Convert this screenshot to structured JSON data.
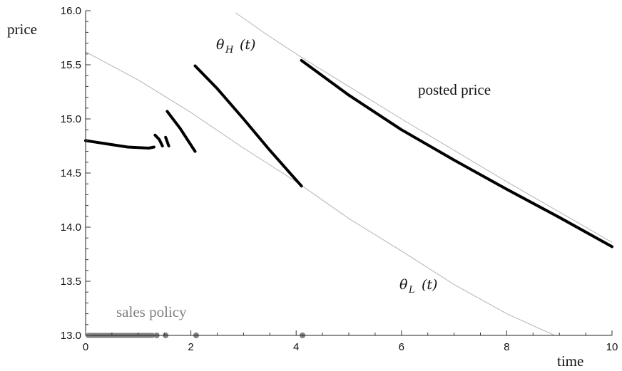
{
  "chart_data": {
    "type": "line",
    "xlabel": "time",
    "ylabel": "price",
    "xlim": [
      0,
      10
    ],
    "ylim": [
      13.0,
      16.0
    ],
    "x_ticks": [
      0,
      2,
      4,
      6,
      8,
      10
    ],
    "x_tick_labels": [
      "0",
      "2",
      "4",
      "6",
      "8",
      "10"
    ],
    "y_ticks": [
      13.0,
      13.5,
      14.0,
      14.5,
      15.0,
      15.5,
      16.0
    ],
    "y_tick_labels": [
      "13.0",
      "13.5",
      "14.0",
      "14.5",
      "15.0",
      "15.5",
      "16.0"
    ],
    "grid": false,
    "annotations": {
      "theta_h": {
        "symbol": "θ",
        "subscript": "H",
        "arg": "(t)"
      },
      "theta_l": {
        "symbol": "θ",
        "subscript": "L",
        "arg": "(t)"
      },
      "posted_price": "posted price",
      "sales_policy": "sales policy"
    },
    "series": [
      {
        "role": "theta_H",
        "color": "#b4b4b4",
        "x": [
          2.85,
          3.5,
          4.1,
          5.0,
          6.0,
          7.0,
          8.0,
          9.0,
          10.0
        ],
        "y": [
          15.98,
          15.76,
          15.57,
          15.3,
          15.0,
          14.71,
          14.42,
          14.14,
          13.86
        ]
      },
      {
        "role": "theta_L",
        "color": "#b4b4b4",
        "x": [
          0,
          1,
          2,
          3,
          4,
          5,
          6,
          7,
          8,
          9,
          9.15
        ],
        "y": [
          15.62,
          15.36,
          15.06,
          14.73,
          14.42,
          14.08,
          13.78,
          13.47,
          13.2,
          12.98,
          12.97
        ]
      },
      {
        "role": "posted_price",
        "color": "#000000",
        "segments": [
          {
            "x": [
              0,
              0.4,
              0.8,
              1.2,
              1.3
            ],
            "y": [
              14.8,
              14.77,
              14.74,
              14.73,
              14.74
            ]
          },
          {
            "x": [
              1.32,
              1.4,
              1.46
            ],
            "y": [
              14.85,
              14.81,
              14.75
            ]
          },
          {
            "x": [
              1.52,
              1.58
            ],
            "y": [
              14.83,
              14.75
            ]
          },
          {
            "x": [
              1.55,
              1.8,
              2.08
            ],
            "y": [
              15.07,
              14.91,
              14.7
            ]
          },
          {
            "x": [
              2.08,
              2.5,
              3.0,
              3.5,
              4.1
            ],
            "y": [
              15.49,
              15.28,
              15.0,
              14.71,
              14.38
            ]
          },
          {
            "x": [
              4.1,
              5.0,
              6.0,
              7.0,
              8.0,
              9.0,
              10.0
            ],
            "y": [
              15.54,
              15.22,
              14.9,
              14.62,
              14.35,
              14.09,
              13.82
            ]
          }
        ]
      },
      {
        "role": "sales_policy",
        "color": "#808080",
        "bar": [
          0,
          1.32
        ],
        "points": [
          1.35,
          1.52,
          2.1,
          4.12
        ],
        "y": 13.0
      }
    ]
  }
}
